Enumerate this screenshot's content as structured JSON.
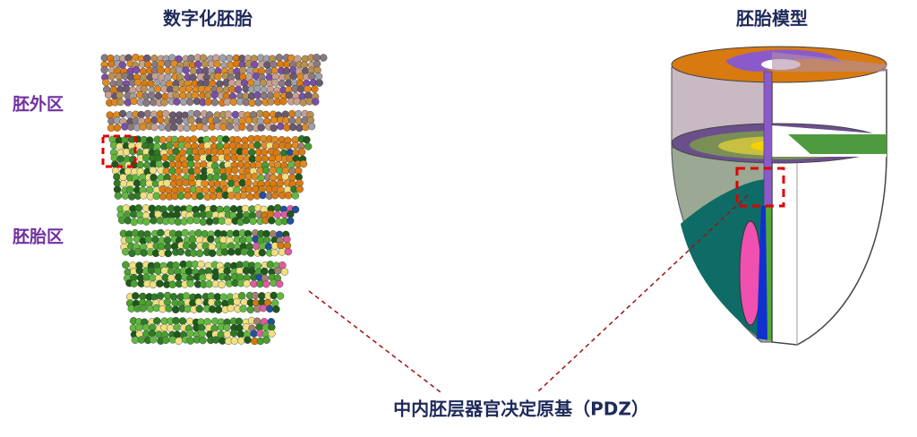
{
  "left_panel": {
    "title": "数字化胚胎",
    "labels": [
      "胚外区",
      "胚胎区"
    ]
  },
  "right_panel": {
    "title": "胚胎模型"
  },
  "caption": "中内胚层器官决定原基（PDZ）"
}
